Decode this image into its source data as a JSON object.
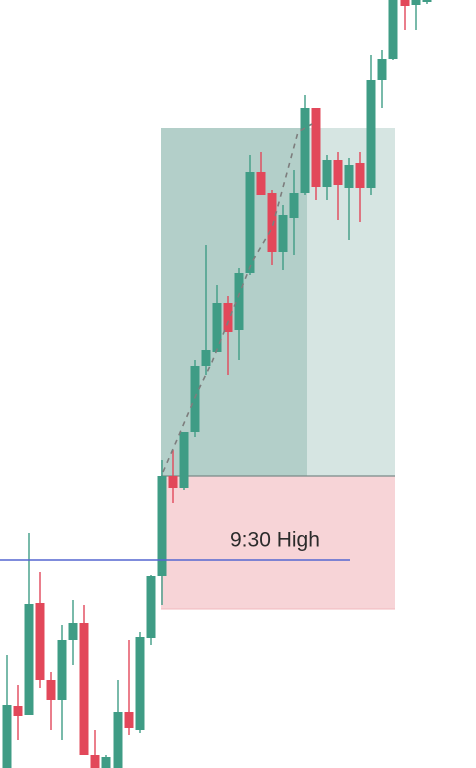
{
  "annotation": {
    "label": "9:30 High"
  }
}
